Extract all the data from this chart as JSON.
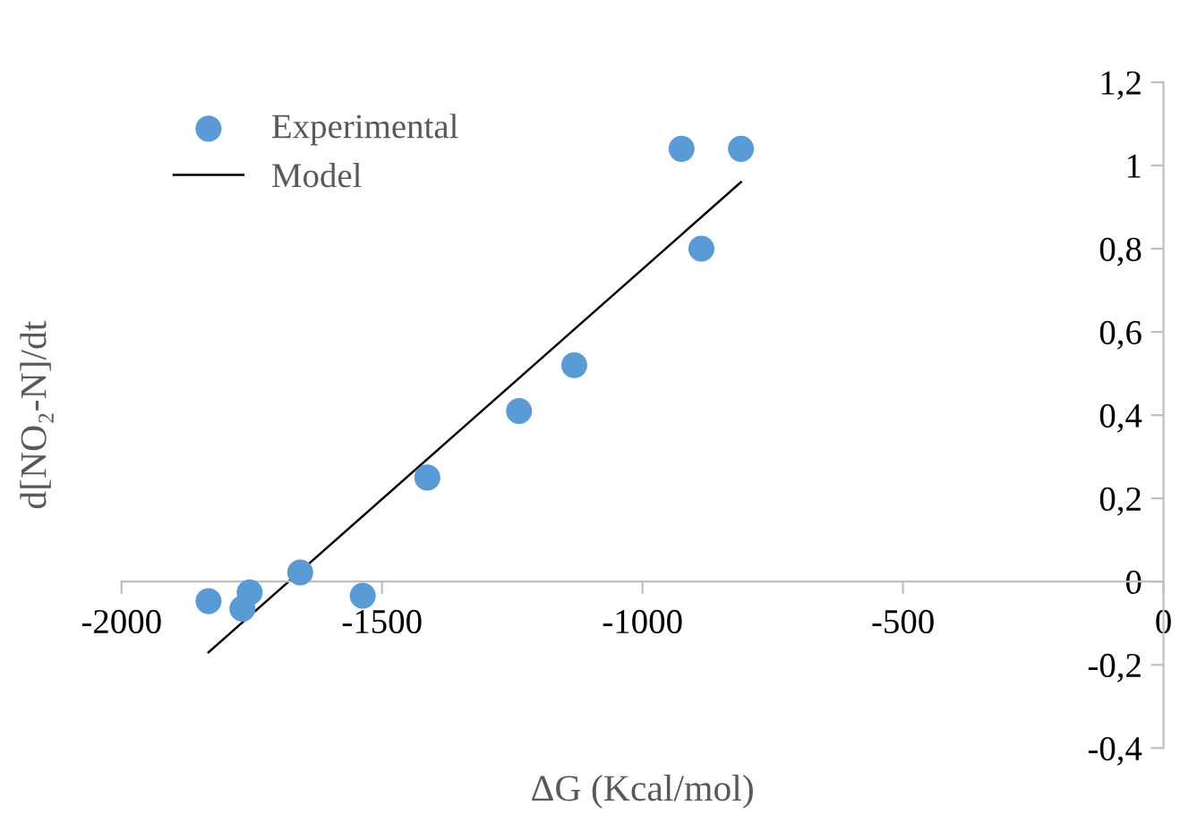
{
  "chart_data": {
    "type": "scatter",
    "xlabel": "ΔG (Kcal/mol)",
    "ylabel": "d[NO₂-N]/dt",
    "xlim": [
      -2000,
      0
    ],
    "xticks": [
      -2000,
      -1500,
      -1000,
      -500,
      0
    ],
    "ylim": [
      -0.4,
      1.2
    ],
    "yticks": [
      {
        "value": -0.4,
        "label": "-0,4"
      },
      {
        "value": -0.2,
        "label": "-0,2"
      },
      0,
      {
        "value": 0.2,
        "label": "0,2"
      },
      {
        "value": 0.4,
        "label": "0,4"
      },
      {
        "value": 0.6,
        "label": "0,6"
      },
      {
        "value": 0.8,
        "label": "0,8"
      },
      1,
      {
        "value": 1.2,
        "label": "1,2"
      }
    ],
    "grid": false,
    "legend": "top left",
    "series": [
      {
        "name": "Experimental",
        "marker": "circle",
        "color": "#5b9bd5",
        "x": [
          -1833,
          -1768,
          -1754,
          -1657,
          -1537,
          -1413,
          -1237,
          -1131,
          -925,
          -887,
          -811
        ],
        "values": [
          -0.047,
          -0.065,
          -0.026,
          0.022,
          -0.034,
          0.25,
          0.41,
          0.52,
          1.04,
          0.8,
          1.04
        ]
      },
      {
        "name": "Model",
        "type": "line",
        "marker": "none",
        "line_style": "solid",
        "color": "#000000",
        "x": [
          -1833,
          -811
        ],
        "values": [
          -0.17,
          0.96
        ]
      }
    ]
  }
}
